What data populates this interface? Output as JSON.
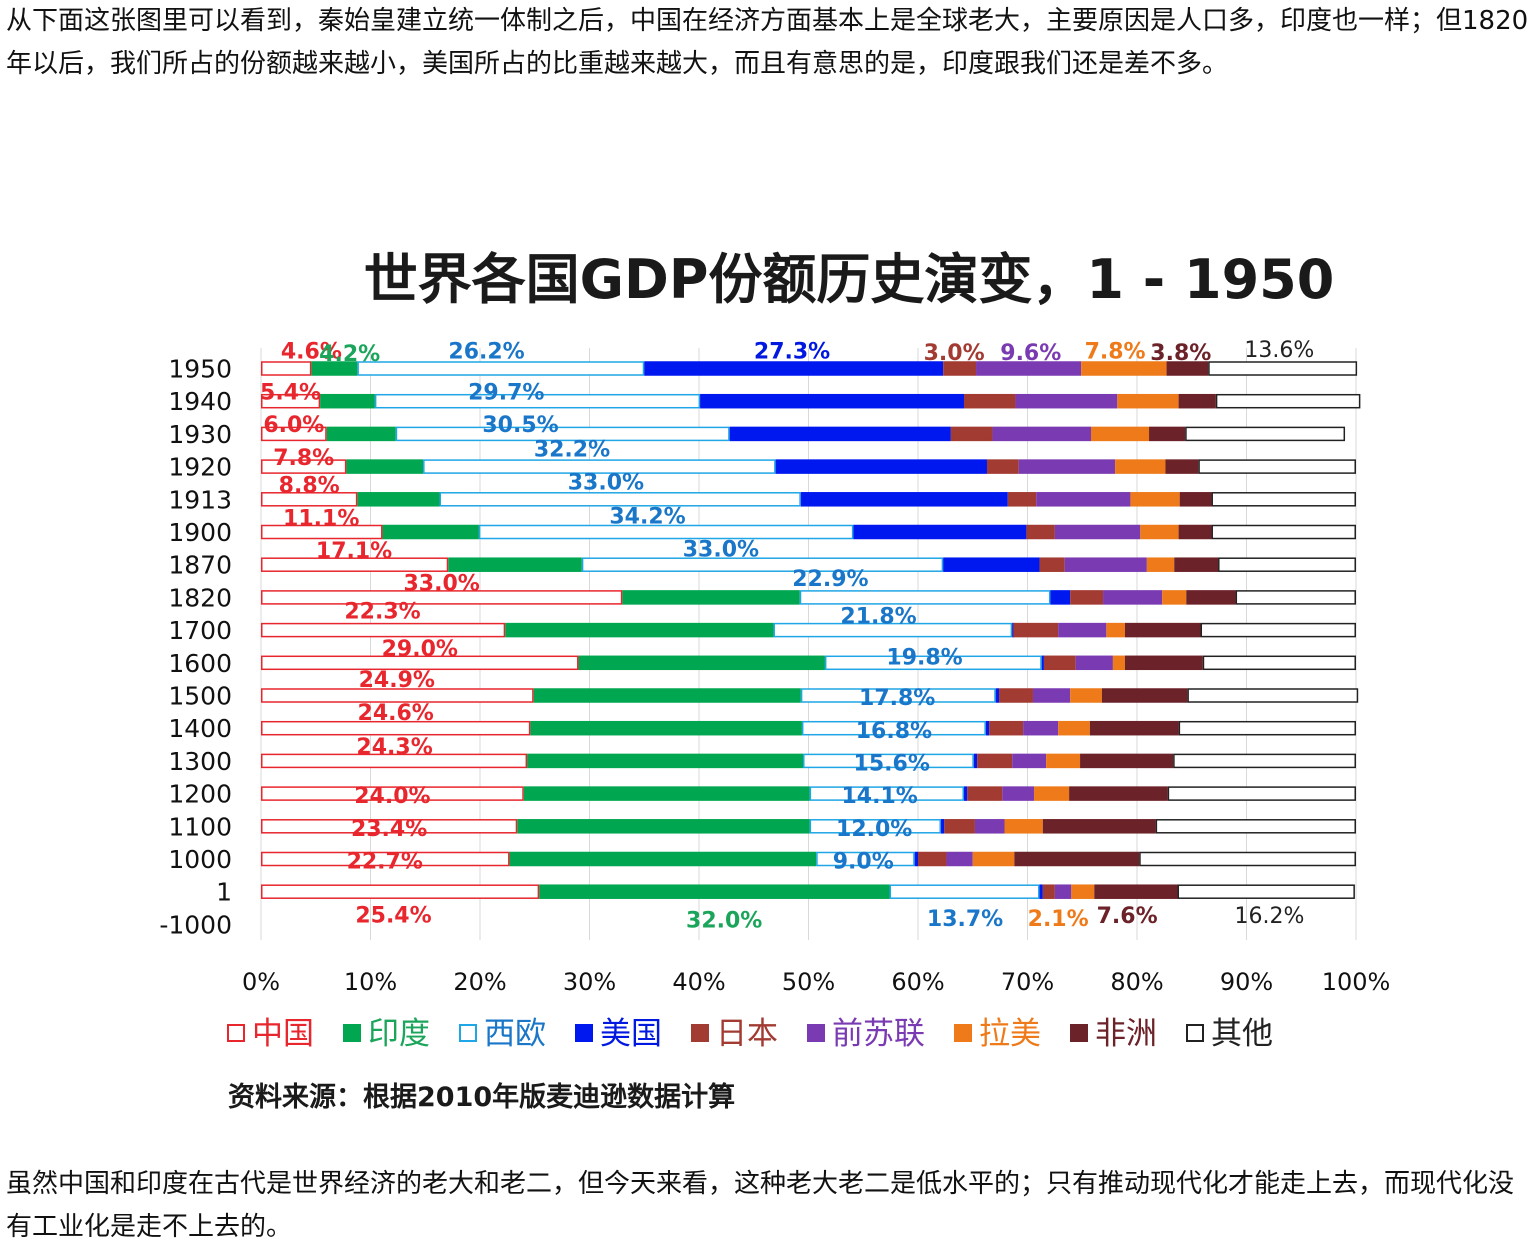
{
  "text_top": "从下面这张图里可以看到，秦始皇建立统一体制之后，中国在经济方面基本上是全球老大，主要原因是人口多，印度也一样；但1820年以后，我们所占的份额越来越小，美国所占的比重越来越大，而且有意思的是，印度跟我们还是差不多。",
  "text_bottom": "虽然中国和印度在古代是世界经济的老大和老二，但今天来看，这种老大老二是低水平的；只有推动现代化才能走上去，而现代化没有工业化是走不上去的。",
  "chart_data": {
    "type": "bar",
    "orientation": "horizontal",
    "stacked": "100%",
    "title": "世界各国GDP份额历史演变，1 - 1950",
    "source": "资料来源：根据2010年版麦迪逊数据计算",
    "categories": [
      "1950",
      "1940",
      "1930",
      "1920",
      "1913",
      "1900",
      "1870",
      "1820",
      "1700",
      "1600",
      "1500",
      "1400",
      "1300",
      "1200",
      "1100",
      "1000",
      "1",
      "-1000"
    ],
    "xlim": [
      0,
      100
    ],
    "x_ticks": [
      "0%",
      "10%",
      "20%",
      "30%",
      "40%",
      "50%",
      "60%",
      "70%",
      "80%",
      "90%",
      "100%"
    ],
    "legend_position": "bottom",
    "series": [
      {
        "name": "中国",
        "key": "china",
        "fill": "#ffffff",
        "stroke": "#e8262d",
        "label_color": "#e8262d",
        "values": [
          4.6,
          5.4,
          6.0,
          7.8,
          8.8,
          11.1,
          17.1,
          33.0,
          22.3,
          29.0,
          24.9,
          24.6,
          24.3,
          24.0,
          23.4,
          22.7,
          25.4,
          null
        ]
      },
      {
        "name": "印度",
        "key": "india",
        "fill": "#00a650",
        "stroke": "#00a650",
        "label_color": "#1aa55a",
        "values": [
          4.2,
          5.0,
          6.3,
          7.0,
          7.5,
          8.8,
          12.2,
          16.2,
          24.5,
          22.5,
          24.4,
          24.8,
          25.2,
          26.1,
          26.7,
          28.0,
          32.0,
          null
        ]
      },
      {
        "name": "西欧",
        "key": "western_europe",
        "fill": "#ffffff",
        "stroke": "#1ea6e6",
        "label_color": "#1976c8",
        "values": [
          26.2,
          29.7,
          30.5,
          32.2,
          33.0,
          34.2,
          33.0,
          22.9,
          21.8,
          19.8,
          17.8,
          16.8,
          15.6,
          14.1,
          12.0,
          9.0,
          13.7,
          null
        ]
      },
      {
        "name": "美国",
        "key": "usa",
        "fill": "#0018f0",
        "stroke": "#0018f0",
        "label_color": "#0018e0",
        "values": [
          27.3,
          24.1,
          20.2,
          19.3,
          18.9,
          15.8,
          8.8,
          1.8,
          0.1,
          0.2,
          0.3,
          0.3,
          0.3,
          0.3,
          0.3,
          0.3,
          0.3,
          null
        ]
      },
      {
        "name": "日本",
        "key": "japan",
        "fill": "#a23b32",
        "stroke": "#a23b32",
        "label_color": "#a23b32",
        "values": [
          3.0,
          4.7,
          3.8,
          2.9,
          2.6,
          2.6,
          2.3,
          3.0,
          4.1,
          2.9,
          3.1,
          3.1,
          3.2,
          3.2,
          2.8,
          2.6,
          1.1,
          null
        ]
      },
      {
        "name": "前苏联",
        "key": "former_ussr",
        "fill": "#7a3ab2",
        "stroke": "#7a3ab2",
        "label_color": "#7a3ab2",
        "values": [
          9.6,
          9.3,
          9.0,
          8.8,
          8.6,
          7.8,
          7.5,
          5.4,
          4.4,
          3.4,
          3.4,
          3.2,
          3.1,
          2.9,
          2.7,
          2.4,
          1.5,
          null
        ]
      },
      {
        "name": "拉美",
        "key": "latin_america",
        "fill": "#ee7a1a",
        "stroke": "#ee7a1a",
        "label_color": "#ee7a1a",
        "values": [
          7.8,
          5.6,
          5.3,
          4.6,
          4.5,
          3.5,
          2.5,
          2.2,
          1.7,
          1.1,
          2.9,
          2.9,
          3.1,
          3.2,
          3.5,
          3.8,
          2.1,
          null
        ]
      },
      {
        "name": "非洲",
        "key": "africa",
        "fill": "#6b2228",
        "stroke": "#6b2228",
        "label_color": "#6b2228",
        "values": [
          3.8,
          3.4,
          3.3,
          3.0,
          2.9,
          3.0,
          4.0,
          4.5,
          6.9,
          7.1,
          7.8,
          8.1,
          8.5,
          9.0,
          10.3,
          11.4,
          7.6,
          null
        ]
      },
      {
        "name": "其他",
        "key": "others",
        "fill": "#ffffff",
        "stroke": "#222222",
        "label_color": "#222222",
        "values": [
          13.6,
          13.2,
          14.6,
          14.4,
          13.2,
          13.2,
          12.6,
          11.0,
          14.2,
          14.0,
          15.6,
          16.2,
          16.7,
          17.2,
          18.3,
          19.8,
          16.2,
          null
        ]
      }
    ],
    "labels": [
      {
        "text": "4.6%",
        "series": "china",
        "x": 4.6,
        "row": 0,
        "row_offset": -0.55
      },
      {
        "text": "4.2%",
        "series": "india",
        "x": 8.1,
        "row": 0,
        "row_offset": -0.48
      },
      {
        "text": "26.2%",
        "series": "western_europe",
        "x": 20.6,
        "row": 0,
        "row_offset": -0.55
      },
      {
        "text": "27.3%",
        "series": "usa",
        "x": 48.5,
        "row": 0,
        "row_offset": -0.55
      },
      {
        "text": "3.0%",
        "series": "japan",
        "x": 63.3,
        "row": 0,
        "row_offset": -0.5
      },
      {
        "text": "9.6%",
        "series": "former_ussr",
        "x": 70.3,
        "row": 0,
        "row_offset": -0.5
      },
      {
        "text": "7.8%",
        "series": "latin_america",
        "x": 78.0,
        "row": 0,
        "row_offset": -0.55
      },
      {
        "text": "3.8%",
        "series": "africa",
        "x": 84.0,
        "row": 0,
        "row_offset": -0.5
      },
      {
        "text": "13.6%",
        "series": "others",
        "x": 93.0,
        "row": 0,
        "row_offset": -0.6
      },
      {
        "text": "5.4%",
        "series": "china",
        "x": 2.7,
        "row": 1,
        "row_offset": -0.3
      },
      {
        "text": "29.7%",
        "series": "western_europe",
        "x": 22.4,
        "row": 1,
        "row_offset": -0.3
      },
      {
        "text": "6.0%",
        "series": "china",
        "x": 3.0,
        "row": 2,
        "row_offset": -0.3
      },
      {
        "text": "30.5%",
        "series": "western_europe",
        "x": 23.7,
        "row": 2,
        "row_offset": -0.3
      },
      {
        "text": "7.8%",
        "series": "china",
        "x": 3.9,
        "row": 3,
        "row_offset": -0.3
      },
      {
        "text": "32.2%",
        "series": "western_europe",
        "x": 28.4,
        "row": 3,
        "row_offset": -0.55
      },
      {
        "text": "8.8%",
        "series": "china",
        "x": 4.4,
        "row": 4,
        "row_offset": -0.45
      },
      {
        "text": "33.0%",
        "series": "western_europe",
        "x": 31.5,
        "row": 4,
        "row_offset": -0.55
      },
      {
        "text": "11.1%",
        "series": "china",
        "x": 5.5,
        "row": 5,
        "row_offset": -0.45
      },
      {
        "text": "34.2%",
        "series": "western_europe",
        "x": 35.3,
        "row": 5,
        "row_offset": -0.5
      },
      {
        "text": "17.1%",
        "series": "china",
        "x": 8.5,
        "row": 6,
        "row_offset": -0.45
      },
      {
        "text": "33.0%",
        "series": "western_europe",
        "x": 42.0,
        "row": 6,
        "row_offset": -0.5
      },
      {
        "text": "33.0%",
        "series": "china",
        "x": 16.5,
        "row": 7,
        "row_offset": -0.45
      },
      {
        "text": "22.9%",
        "series": "western_europe",
        "x": 52.0,
        "row": 7,
        "row_offset": -0.6
      },
      {
        "text": "22.3%",
        "series": "china",
        "x": 11.1,
        "row": 8,
        "row_offset": -0.6
      },
      {
        "text": "21.8%",
        "series": "western_europe",
        "x": 56.4,
        "row": 8,
        "row_offset": -0.45
      },
      {
        "text": "29.0%",
        "series": "china",
        "x": 14.5,
        "row": 9,
        "row_offset": -0.45
      },
      {
        "text": "19.8%",
        "series": "western_europe",
        "x": 60.6,
        "row": 9,
        "row_offset": -0.2
      },
      {
        "text": "24.9%",
        "series": "china",
        "x": 12.4,
        "row": 10,
        "row_offset": -0.5
      },
      {
        "text": "17.8%",
        "series": "western_europe",
        "x": 58.1,
        "row": 10,
        "row_offset": 0.05
      },
      {
        "text": "24.6%",
        "series": "china",
        "x": 12.3,
        "row": 11,
        "row_offset": -0.5
      },
      {
        "text": "16.8%",
        "series": "western_europe",
        "x": 57.8,
        "row": 11,
        "row_offset": 0.05
      },
      {
        "text": "24.3%",
        "series": "china",
        "x": 12.2,
        "row": 12,
        "row_offset": -0.45
      },
      {
        "text": "15.6%",
        "series": "western_europe",
        "x": 57.6,
        "row": 12,
        "row_offset": 0.05
      },
      {
        "text": "24.0%",
        "series": "china",
        "x": 12.0,
        "row": 13,
        "row_offset": 0.05
      },
      {
        "text": "14.1%",
        "series": "western_europe",
        "x": 56.5,
        "row": 13,
        "row_offset": 0.05
      },
      {
        "text": "23.4%",
        "series": "china",
        "x": 11.7,
        "row": 14,
        "row_offset": 0.05
      },
      {
        "text": "12.0%",
        "series": "western_europe",
        "x": 56.0,
        "row": 14,
        "row_offset": 0.05
      },
      {
        "text": "22.7%",
        "series": "china",
        "x": 11.3,
        "row": 15,
        "row_offset": 0.05
      },
      {
        "text": "9.0%",
        "series": "western_europe",
        "x": 55.0,
        "row": 15,
        "row_offset": 0.05
      },
      {
        "text": "25.4%",
        "series": "china",
        "x": 12.1,
        "row": 16,
        "row_offset": 0.7
      },
      {
        "text": "32.0%",
        "series": "india",
        "x": 42.3,
        "row": 16,
        "row_offset": 0.85
      },
      {
        "text": "13.7%",
        "series": "western_europe",
        "x": 64.3,
        "row": 16,
        "row_offset": 0.8
      },
      {
        "text": "2.1%",
        "series": "latin_america",
        "x": 72.8,
        "row": 16,
        "row_offset": 0.8
      },
      {
        "text": "7.6%",
        "series": "africa",
        "x": 79.1,
        "row": 16,
        "row_offset": 0.72
      },
      {
        "text": "16.2%",
        "series": "others",
        "x": 92.1,
        "row": 16,
        "row_offset": 0.72
      }
    ]
  }
}
